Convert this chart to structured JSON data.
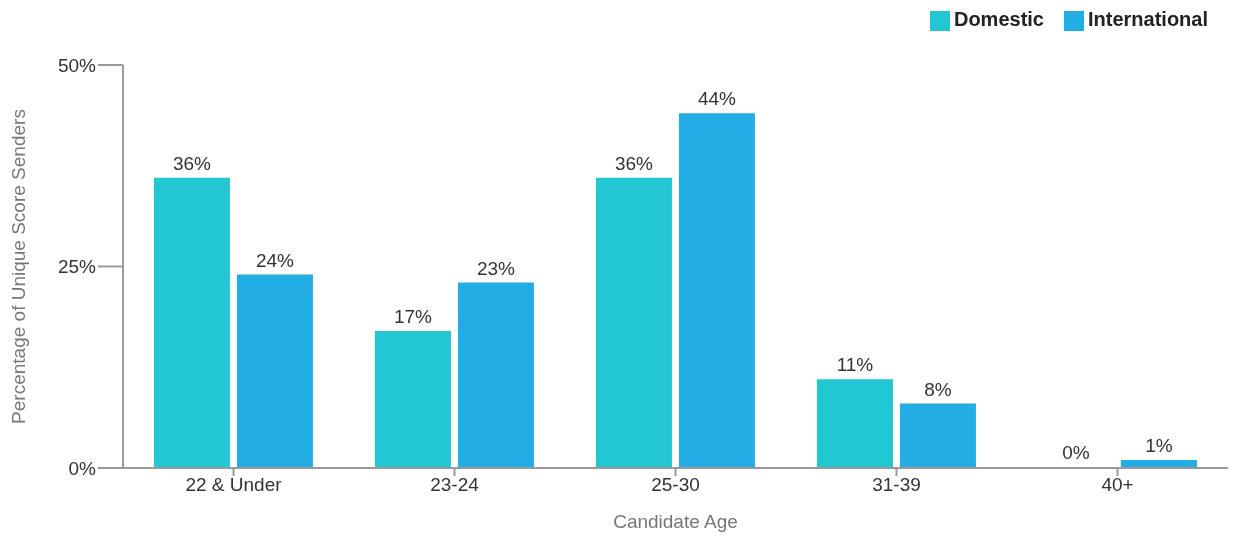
{
  "chart_data": {
    "type": "bar",
    "xlabel": "Candidate Age",
    "ylabel": "Percentage of Unique Score Senders",
    "categories": [
      "22 & Under",
      "23-24",
      "25-30",
      "31-39",
      "40+"
    ],
    "series": [
      {
        "name": "Domestic",
        "color": "#22c7d3",
        "values": [
          36,
          17,
          36,
          11,
          0
        ],
        "value_labels": [
          "36%",
          "17%",
          "36%",
          "11%",
          "0%"
        ]
      },
      {
        "name": "International",
        "color": "#22aee4",
        "values": [
          24,
          23,
          44,
          8,
          1
        ],
        "value_labels": [
          "24%",
          "23%",
          "44%",
          "8%",
          "1%"
        ]
      }
    ],
    "ylim": [
      0,
      50
    ],
    "yticks": [
      {
        "value": 0,
        "label": "0%"
      },
      {
        "value": 25,
        "label": "25%"
      },
      {
        "value": 50,
        "label": "50%"
      }
    ],
    "grid": false,
    "legend": "top right"
  }
}
